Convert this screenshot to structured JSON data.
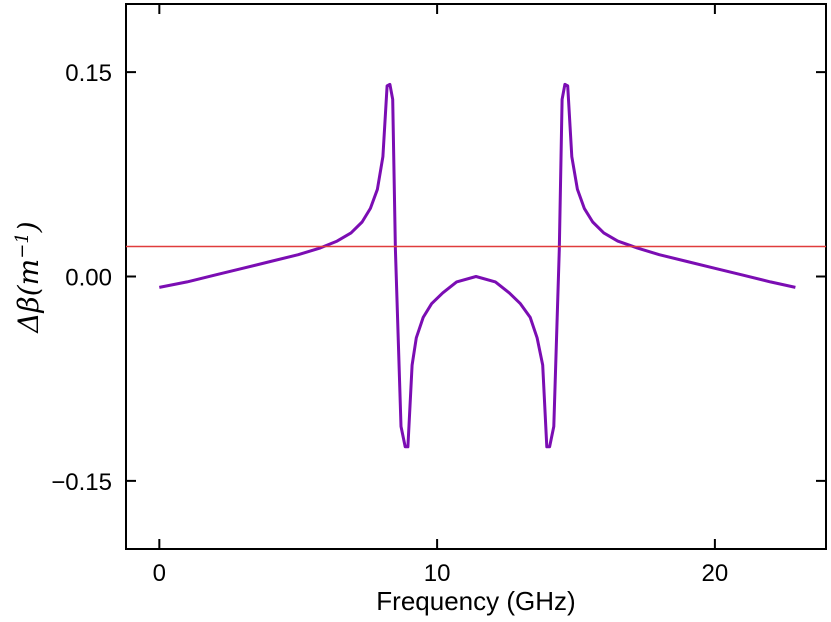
{
  "chart_data": {
    "type": "line",
    "title": "",
    "xlabel": "Frequency (GHz)",
    "ylabel_prefix": "Δβ(m",
    "ylabel_sup": "−1",
    "ylabel_suffix": ")",
    "xlim": [
      -1.2,
      24
    ],
    "ylim": [
      -0.2,
      0.2
    ],
    "xticks": [
      0,
      10,
      20
    ],
    "xtick_labels": [
      "0",
      "10",
      "20"
    ],
    "yticks": [
      -0.15,
      0.0,
      0.15
    ],
    "ytick_labels": [
      "−0.15",
      "0.00",
      "0.15"
    ],
    "grid": false,
    "series": [
      {
        "color": "#7B0DB3",
        "x": [
          0,
          1,
          2,
          3,
          4,
          5,
          5.8,
          6.4,
          6.9,
          7.3,
          7.6,
          7.85,
          8.05,
          8.2,
          8.3,
          8.4,
          8.5,
          8.7,
          8.85,
          8.95,
          9.1,
          9.25,
          9.5,
          9.8,
          10.2,
          10.7,
          11.4,
          12.1,
          12.6,
          13.0,
          13.35,
          13.6,
          13.8,
          13.95,
          14.05,
          14.2,
          14.4,
          14.5,
          14.6,
          14.7,
          14.85,
          15.05,
          15.3,
          15.6,
          16.0,
          16.5,
          17.2,
          18,
          19,
          20,
          21,
          22,
          22.9
        ],
        "y": [
          -0.008,
          -0.004,
          0.001,
          0.006,
          0.011,
          0.016,
          0.021,
          0.026,
          0.032,
          0.04,
          0.05,
          0.064,
          0.088,
          0.14,
          0.141,
          0.13,
          0.02,
          -0.11,
          -0.125,
          -0.125,
          -0.065,
          -0.045,
          -0.03,
          -0.02,
          -0.012,
          -0.004,
          0.0,
          -0.004,
          -0.012,
          -0.02,
          -0.03,
          -0.045,
          -0.065,
          -0.125,
          -0.125,
          -0.11,
          0.02,
          0.13,
          0.141,
          0.14,
          0.088,
          0.064,
          0.05,
          0.04,
          0.032,
          0.026,
          0.021,
          0.016,
          0.011,
          0.006,
          0.001,
          -0.004,
          -0.008
        ]
      },
      {
        "color": "#E03C3C",
        "x": [
          -1.2,
          24
        ],
        "y": [
          0.022,
          0.022
        ]
      }
    ]
  }
}
